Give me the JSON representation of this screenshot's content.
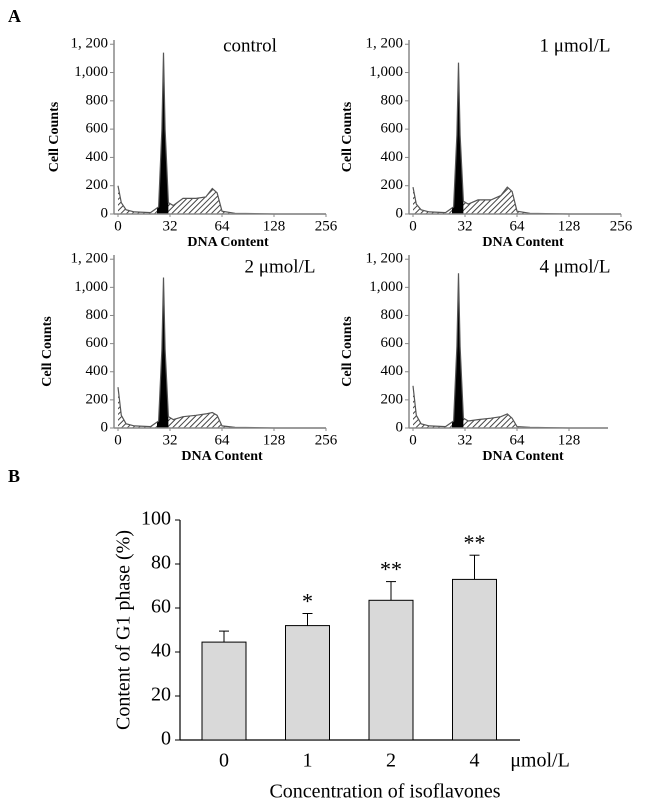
{
  "panel_labels": [
    "A",
    "B"
  ],
  "chart_data": [
    {
      "type": "area",
      "title": "control",
      "xlabel": "DNA Content",
      "ylabel": "Cell Counts",
      "x": [
        0,
        2,
        5,
        10,
        20,
        25,
        27,
        28,
        29,
        31,
        34,
        40,
        48,
        54,
        58,
        61,
        64,
        80,
        128,
        256
      ],
      "values": [
        200,
        80,
        30,
        15,
        10,
        50,
        600,
        1140,
        600,
        80,
        60,
        110,
        110,
        120,
        180,
        150,
        20,
        5,
        0,
        0
      ],
      "xlim": [
        0,
        256
      ],
      "ylim": [
        0,
        1230
      ],
      "xticks": [
        0,
        32,
        64,
        128,
        256
      ],
      "yticks": [
        0,
        200,
        400,
        600,
        800,
        {
          "value": 1000,
          "label": "1,000"
        },
        {
          "value": 1200,
          "label": "1, 200"
        }
      ],
      "color": "#000000"
    },
    {
      "type": "area",
      "title": "1 μmol/L",
      "xlabel": "DNA Content",
      "ylabel": "Cell Counts",
      "x": [
        0,
        2,
        5,
        10,
        20,
        25,
        27,
        28,
        29,
        31,
        34,
        40,
        48,
        54,
        58,
        61,
        64,
        80,
        128,
        256
      ],
      "values": [
        190,
        70,
        30,
        15,
        10,
        50,
        560,
        1070,
        560,
        90,
        70,
        100,
        100,
        130,
        190,
        160,
        20,
        5,
        0,
        0
      ],
      "xlim": [
        0,
        256
      ],
      "ylim": [
        0,
        1230
      ],
      "xticks": [
        0,
        32,
        64,
        128,
        256
      ],
      "yticks": [
        0,
        200,
        400,
        600,
        800,
        {
          "value": 1000,
          "label": "1,000"
        },
        {
          "value": 1200,
          "label": "1, 200"
        }
      ],
      "color": "#000000"
    },
    {
      "type": "area",
      "title": "2 μmol/L",
      "xlabel": "DNA Content",
      "ylabel": "Cell Counts",
      "x": [
        0,
        2,
        5,
        10,
        20,
        25,
        27,
        28,
        29,
        31,
        34,
        40,
        48,
        54,
        58,
        61,
        64,
        80,
        128,
        256
      ],
      "values": [
        290,
        90,
        30,
        15,
        10,
        50,
        560,
        1070,
        560,
        80,
        60,
        80,
        90,
        100,
        110,
        90,
        15,
        5,
        0,
        0
      ],
      "xlim": [
        0,
        256
      ],
      "ylim": [
        0,
        1230
      ],
      "xticks": [
        0,
        32,
        64,
        128,
        256
      ],
      "yticks": [
        0,
        200,
        400,
        600,
        800,
        {
          "value": 1000,
          "label": "1,000"
        },
        {
          "value": 1200,
          "label": "1, 200"
        }
      ],
      "color": "#000000"
    },
    {
      "type": "area",
      "title": "4 μmol/L",
      "xlabel": "DNA Content",
      "ylabel": "Cell Counts",
      "x": [
        0,
        2,
        5,
        10,
        20,
        25,
        27,
        28,
        29,
        31,
        34,
        40,
        48,
        54,
        58,
        61,
        64,
        80,
        128,
        176
      ],
      "values": [
        300,
        90,
        30,
        15,
        10,
        50,
        580,
        1100,
        580,
        70,
        50,
        60,
        70,
        80,
        100,
        70,
        10,
        5,
        0,
        0
      ],
      "xlim": [
        0,
        176
      ],
      "ylim": [
        0,
        1230
      ],
      "xticks": [
        0,
        32,
        64,
        128
      ],
      "yticks": [
        0,
        200,
        400,
        600,
        800,
        {
          "value": 1000,
          "label": "1,000"
        },
        {
          "value": 1200,
          "label": "1, 200"
        }
      ],
      "color": "#000000"
    },
    {
      "type": "bar",
      "xlabel": "Concentration of  isoflavones",
      "ylabel": "Content of G1 phase (%)",
      "categories": [
        "0",
        "1",
        "2",
        "4"
      ],
      "x_unit": "μmol/L",
      "values": [
        44.5,
        52,
        63.5,
        73
      ],
      "errors": [
        5,
        5.5,
        8.5,
        11
      ],
      "significance": [
        null,
        "*",
        "**",
        "**"
      ],
      "ylim": [
        0,
        100
      ],
      "yticks": [
        0,
        20,
        40,
        60,
        80,
        100
      ],
      "color": "#d9d9d9"
    }
  ]
}
